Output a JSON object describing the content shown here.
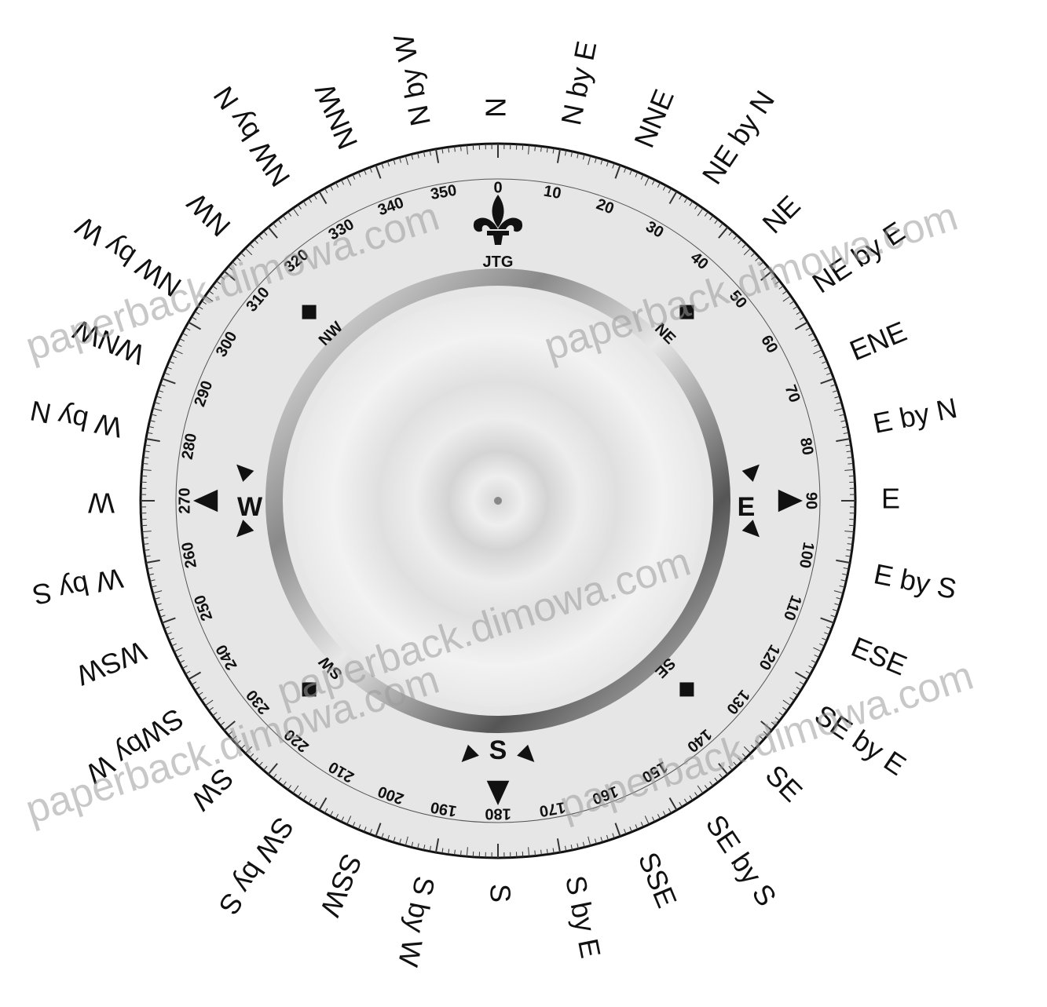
{
  "points": [
    "N",
    "N by E",
    "NNE",
    "NE by N",
    "NE",
    "NE by E",
    "ENE",
    "E by N",
    "E",
    "E by S",
    "ESE",
    "SE by E",
    "SE",
    "SE by S",
    "SSE",
    "S by E",
    "S",
    "S by W",
    "SSW",
    "SW  by S",
    "SW",
    "SWby W",
    "WSW",
    "W by S",
    "W",
    "W by N",
    "WNW",
    "NW by W",
    "NW",
    "NW by N",
    "NNW",
    "N by W"
  ],
  "degree_labels": [
    "0",
    "10",
    "20",
    "30",
    "40",
    "50",
    "60",
    "70",
    "80",
    "90",
    "100",
    "110",
    "120",
    "130",
    "140",
    "150",
    "160",
    "170",
    "180",
    "190",
    "200",
    "210",
    "220",
    "230",
    "240",
    "250",
    "260",
    "270",
    "280",
    "290",
    "300",
    "310",
    "320",
    "330",
    "340",
    "350"
  ],
  "cardinals": {
    "north_mark": "JTG",
    "east": "E",
    "south": "S",
    "west": "W"
  },
  "intercardinals": {
    "ne": "NE",
    "se": "SE",
    "sw": "SW",
    "nw": "NW"
  },
  "watermarks": [
    "paperback.dimowa.com",
    "paperback.dimowa.com",
    "paperback.dimowa.com",
    "paperback.dimowa.com",
    "paperback.dimowa.com"
  ],
  "icons": {
    "north": "fleur-de-lis-icon",
    "arrows": "triangle-pointer-icon",
    "diamonds": "diamond-marker-icon"
  },
  "colors": {
    "ink": "#111111",
    "ring": "#e6e6e6",
    "face": "#eeeeee",
    "bezel_dark": "#666666"
  }
}
